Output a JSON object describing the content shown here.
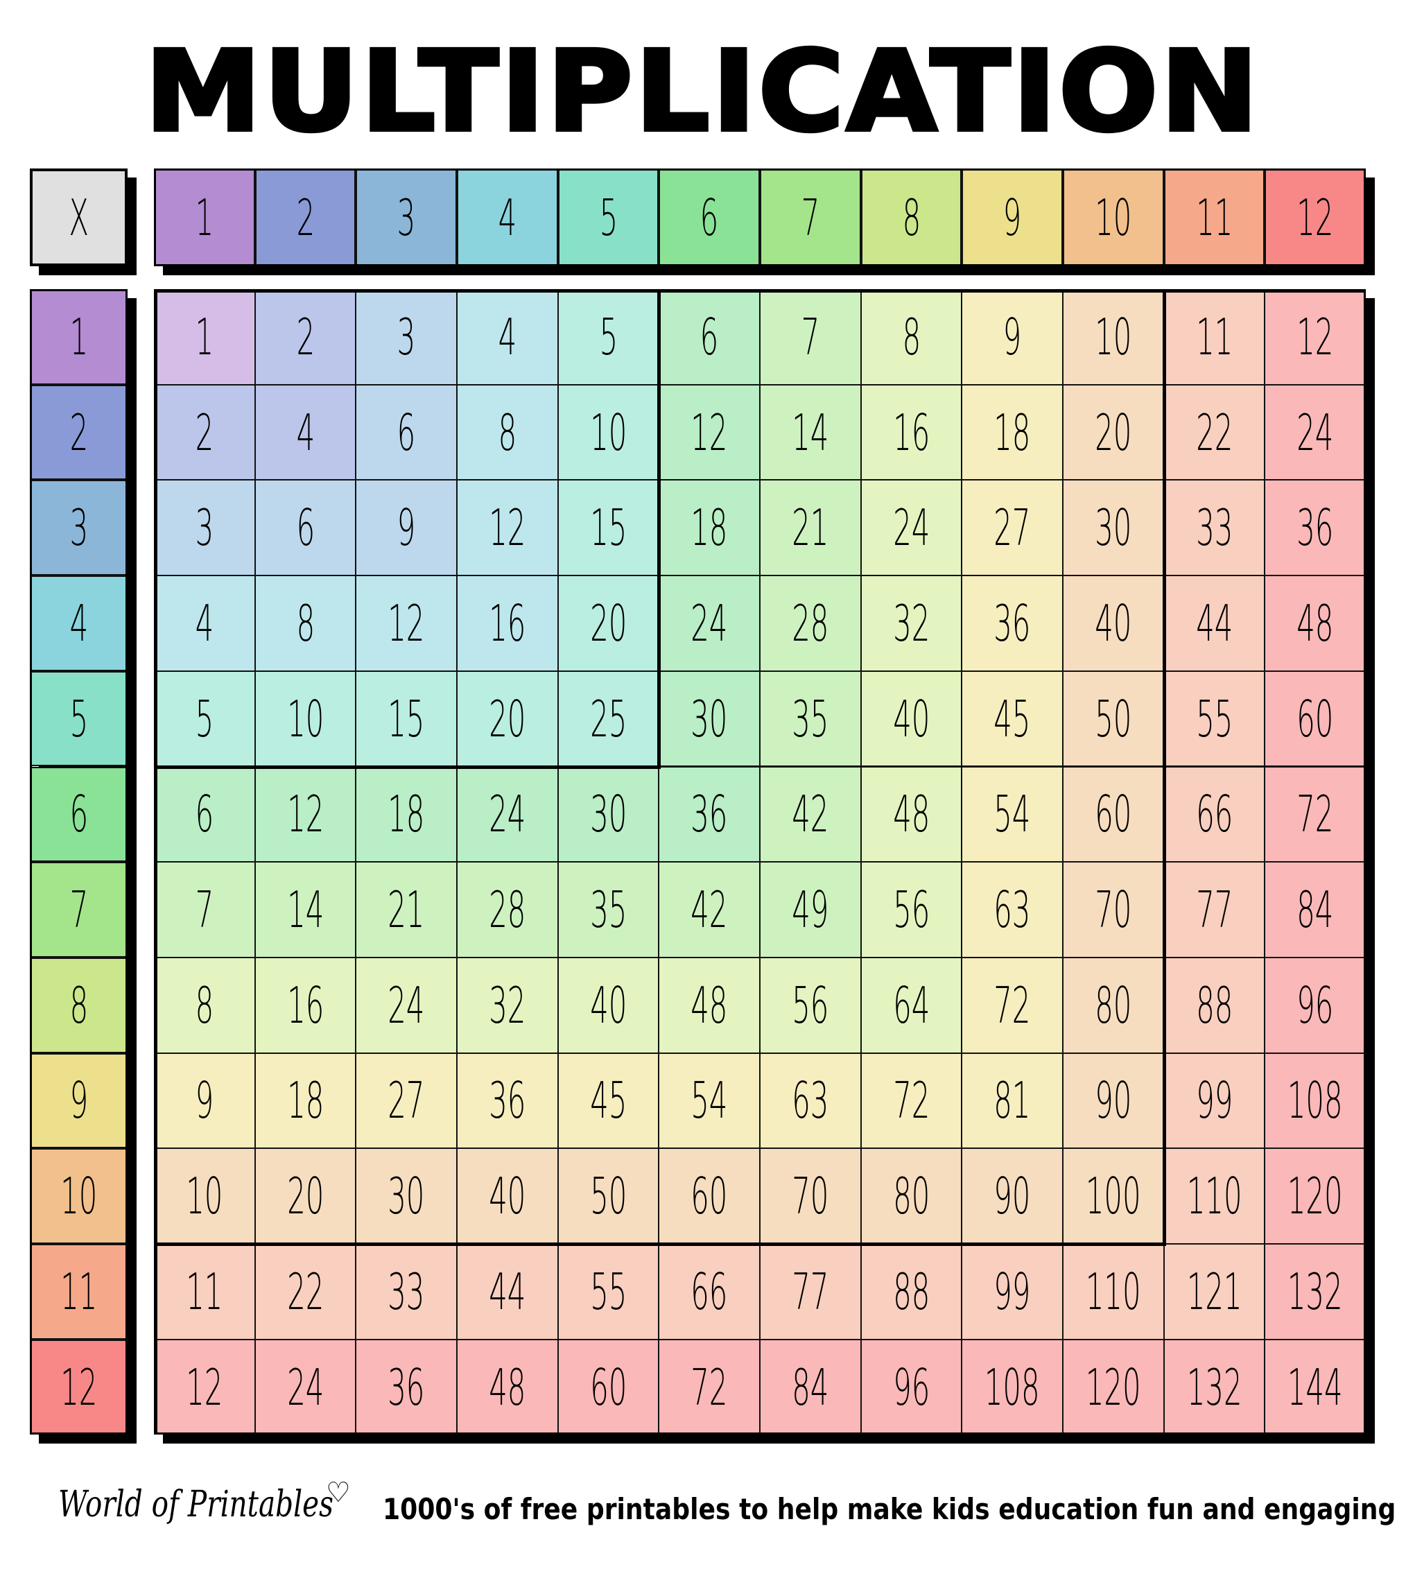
{
  "title": "MULTIPLICATION",
  "corner_label": "X",
  "headers": [
    "1",
    "2",
    "3",
    "4",
    "5",
    "6",
    "7",
    "8",
    "9",
    "10",
    "11",
    "12"
  ],
  "header_colors": [
    "#b48cd2",
    "#8a9ad6",
    "#8bb6d8",
    "#8bd4de",
    "#89e0c8",
    "#89e296",
    "#a4e48a",
    "#cce68c",
    "#ece08c",
    "#f2c08c",
    "#f5a98a",
    "#f88888"
  ],
  "cell_colors": [
    "#d6bde8",
    "#bcc6ea",
    "#bdd8ec",
    "#bde7ec",
    "#baeee0",
    "#b9eec6",
    "#cdf2c0",
    "#e4f4c0",
    "#f6eebf",
    "#f6ddbf",
    "#f9cfbf",
    "#fab8b8"
  ],
  "corner_color": "#e0e0e0",
  "table": [
    [
      "1",
      "2",
      "3",
      "4",
      "5",
      "6",
      "7",
      "8",
      "9",
      "10",
      "11",
      "12"
    ],
    [
      "2",
      "4",
      "6",
      "8",
      "10",
      "12",
      "14",
      "16",
      "18",
      "20",
      "22",
      "24"
    ],
    [
      "3",
      "6",
      "9",
      "12",
      "15",
      "18",
      "21",
      "24",
      "27",
      "30",
      "33",
      "36"
    ],
    [
      "4",
      "8",
      "12",
      "16",
      "20",
      "24",
      "28",
      "32",
      "36",
      "40",
      "44",
      "48"
    ],
    [
      "5",
      "10",
      "15",
      "20",
      "25",
      "30",
      "35",
      "40",
      "45",
      "50",
      "55",
      "60"
    ],
    [
      "6",
      "12",
      "18",
      "24",
      "30",
      "36",
      "42",
      "48",
      "54",
      "60",
      "66",
      "72"
    ],
    [
      "7",
      "14",
      "21",
      "28",
      "35",
      "42",
      "49",
      "56",
      "63",
      "70",
      "77",
      "84"
    ],
    [
      "8",
      "16",
      "24",
      "32",
      "40",
      "48",
      "56",
      "64",
      "72",
      "80",
      "88",
      "96"
    ],
    [
      "9",
      "18",
      "27",
      "36",
      "45",
      "54",
      "63",
      "72",
      "81",
      "90",
      "99",
      "108"
    ],
    [
      "10",
      "20",
      "30",
      "40",
      "50",
      "60",
      "70",
      "80",
      "90",
      "100",
      "110",
      "120"
    ],
    [
      "11",
      "22",
      "33",
      "44",
      "55",
      "66",
      "77",
      "88",
      "99",
      "110",
      "121",
      "132"
    ],
    [
      "12",
      "24",
      "36",
      "48",
      "60",
      "72",
      "84",
      "96",
      "108",
      "120",
      "132",
      "144"
    ]
  ],
  "footer": {
    "logo": "World of Printables",
    "logo_icon": "heart-icon",
    "tagline": "1000's of free printables to help make kids education fun and engaging"
  }
}
